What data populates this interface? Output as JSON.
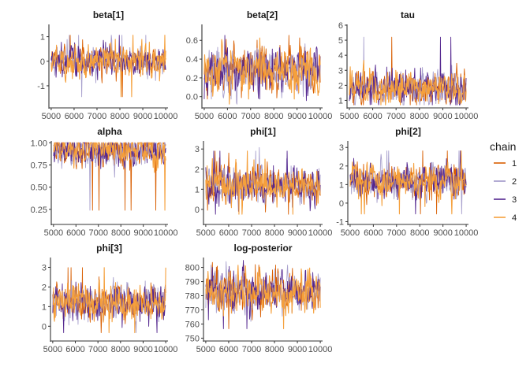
{
  "chart_data": {
    "type": "line",
    "subtype": "mcmc-trace-facets",
    "x": {
      "start": 5000,
      "end": 10000,
      "tick_values": [
        5000,
        6000,
        7000,
        8000,
        9000,
        10000
      ],
      "tick_labels": [
        "5000",
        "6000",
        "7000",
        "8000",
        "9000",
        "10000"
      ]
    },
    "legend": {
      "title": "chain",
      "position": "right",
      "entries": [
        {
          "label": "1",
          "color": "#d95f02"
        },
        {
          "label": "2",
          "color": "#9f96c8"
        },
        {
          "label": "3",
          "color": "#54278f"
        },
        {
          "label": "4",
          "color": "#f5a03c"
        }
      ]
    },
    "panels": [
      {
        "title": "beta[1]",
        "ylim": [
          -1.9,
          1.5
        ],
        "y_ticks": [
          -1,
          0,
          1
        ],
        "y_tick_labels": [
          "-1",
          "0",
          "1"
        ],
        "chain_summary": {
          "center": 0.0,
          "sd": 0.3,
          "min": -1.7,
          "max": 1.25
        }
      },
      {
        "title": "beta[2]",
        "ylim": [
          -0.12,
          0.77
        ],
        "y_ticks": [
          0.0,
          0.2,
          0.4,
          0.6
        ],
        "y_tick_labels": [
          "0.0",
          "0.2",
          "0.4",
          "0.6"
        ],
        "chain_summary": {
          "center": 0.28,
          "sd": 0.12,
          "min": -0.08,
          "max": 0.72
        }
      },
      {
        "title": "tau",
        "ylim": [
          0.5,
          6.05
        ],
        "y_ticks": [
          1,
          2,
          3,
          4,
          5,
          6
        ],
        "y_tick_labels": [
          "1",
          "2",
          "3",
          "4",
          "5",
          "6"
        ],
        "chain_summary": {
          "center": 1.8,
          "sd": 0.55,
          "min": 0.7,
          "max": 5.8
        }
      },
      {
        "title": "alpha",
        "ylim": [
          0.08,
          1.02
        ],
        "y_ticks": [
          0.25,
          0.5,
          0.75,
          1.0
        ],
        "y_tick_labels": [
          "0.25",
          "0.50",
          "0.75",
          "1.00"
        ],
        "chain_summary": {
          "center": 0.92,
          "sd": 0.09,
          "min": 0.12,
          "max": 1.0
        }
      },
      {
        "title": "phi[1]",
        "ylim": [
          -0.75,
          3.4
        ],
        "y_ticks": [
          0,
          1,
          2,
          3
        ],
        "y_tick_labels": [
          "0",
          "1",
          "2",
          "3"
        ],
        "chain_summary": {
          "center": 1.2,
          "sd": 0.45,
          "min": -0.5,
          "max": 3.2
        }
      },
      {
        "title": "phi[2]",
        "ylim": [
          -1.15,
          3.35
        ],
        "y_ticks": [
          -1,
          0,
          1,
          2,
          3
        ],
        "y_tick_labels": [
          "-1",
          "0",
          "1",
          "2",
          "3"
        ],
        "chain_summary": {
          "center": 1.2,
          "sd": 0.45,
          "min": -0.9,
          "max": 3.1
        }
      },
      {
        "title": "phi[3]",
        "ylim": [
          -0.75,
          3.5
        ],
        "y_ticks": [
          0,
          1,
          2,
          3
        ],
        "y_tick_labels": [
          "0",
          "1",
          "2",
          "3"
        ],
        "chain_summary": {
          "center": 1.2,
          "sd": 0.45,
          "min": -0.6,
          "max": 3.3
        }
      },
      {
        "title": "log-posterior",
        "ylim": [
          748,
          807
        ],
        "y_ticks": [
          750,
          760,
          770,
          780,
          790,
          800
        ],
        "y_tick_labels": [
          "750",
          "760",
          "770",
          "780",
          "790",
          "800"
        ],
        "chain_summary": {
          "center": 783,
          "sd": 7,
          "min": 752,
          "max": 805
        }
      }
    ]
  }
}
